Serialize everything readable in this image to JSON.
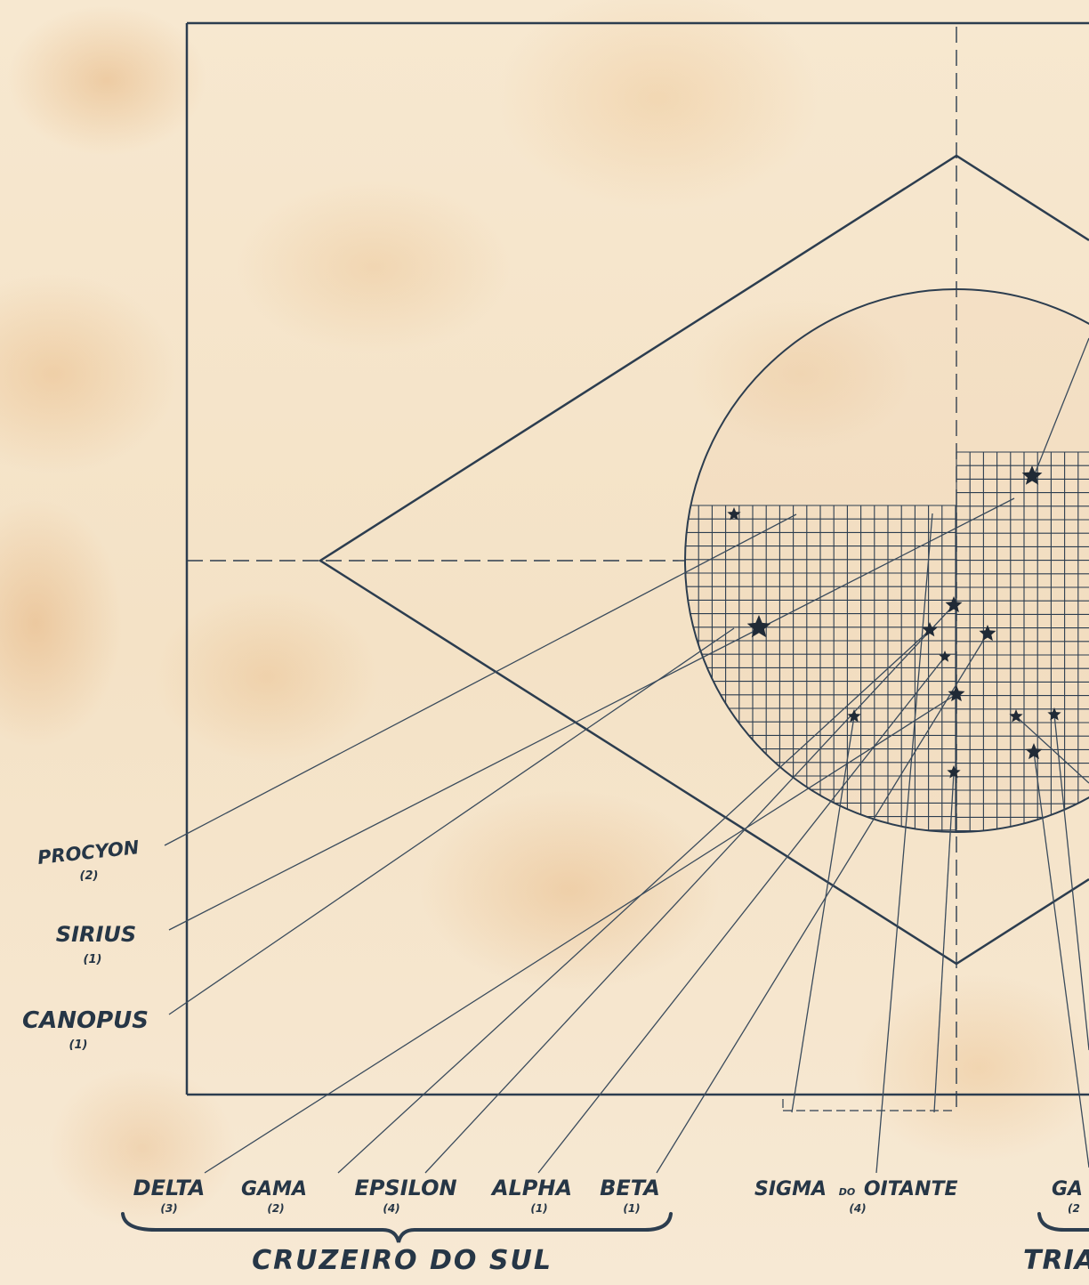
{
  "labels": {
    "procyon": "PROCYON",
    "procyon_mag": "(2)",
    "sirius": "SIRIUS",
    "sirius_mag": "(1)",
    "canopus": "CANOPUS",
    "canopus_mag": "(1)",
    "delta": "DELTA",
    "delta_mag": "(3)",
    "gama": "GAMA",
    "gama_mag": "(2)",
    "epsilon": "EPSILON",
    "epsilon_mag": "(4)",
    "alpha": "ALPHA",
    "alpha_mag": "(1)",
    "beta": "BETA",
    "beta_mag": "(1)",
    "sigma_prefix": "SIGMA",
    "sigma_mid": "DO",
    "sigma_suffix": "OITANTE",
    "sigma_mag": "(4)",
    "gamma_cut": "GA",
    "gamma_cut_mag": "(2",
    "cruzeiro": "CRUZEIRO DO SUL",
    "triangulo_cut": "TRIA"
  },
  "colors": {
    "ink": "#2c3d4f",
    "paper": "#f6e6cc"
  }
}
